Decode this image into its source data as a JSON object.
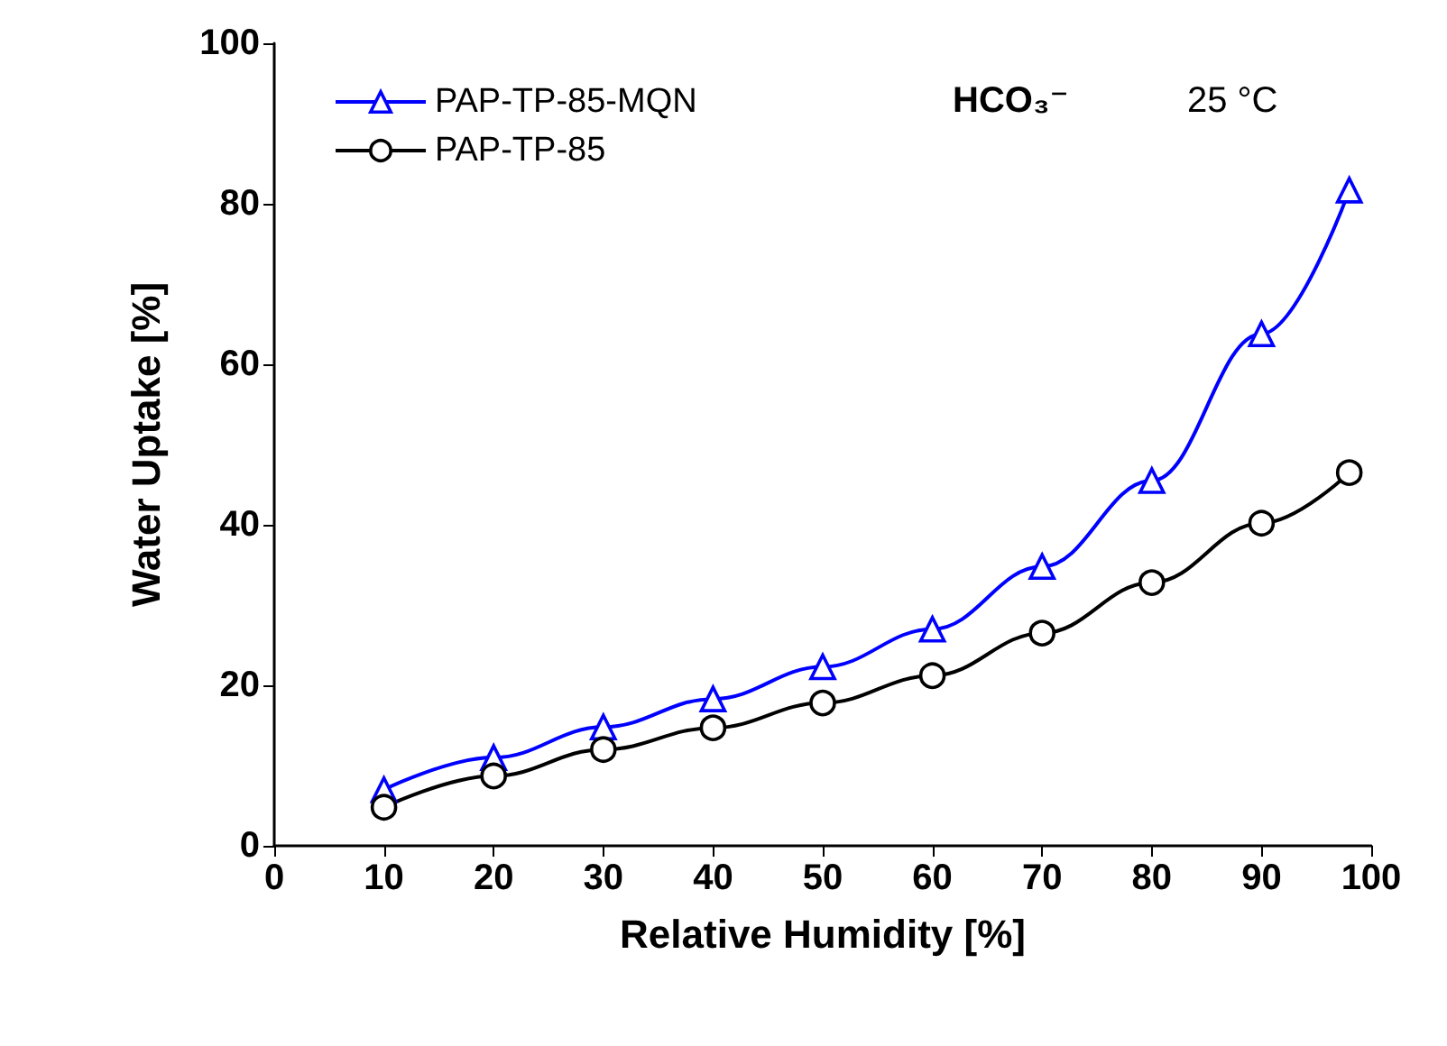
{
  "chart_data": {
    "type": "line",
    "xlabel": "Relative Humidity [%]",
    "ylabel": "Water Uptake [%]",
    "x": [
      10,
      20,
      30,
      40,
      50,
      60,
      70,
      80,
      90,
      98
    ],
    "series": [
      {
        "name": "PAP-TP-85-MQN",
        "color": "#0000ff",
        "marker": "triangle",
        "values": [
          7,
          11,
          14.8,
          18.3,
          22.3,
          27,
          34.8,
          45.5,
          63.8,
          81.7
        ]
      },
      {
        "name": "PAP-TP-85",
        "color": "#000000",
        "marker": "circle",
        "values": [
          4.8,
          8.7,
          12,
          14.7,
          17.8,
          21.2,
          26.5,
          32.8,
          40.2,
          46.5
        ]
      }
    ],
    "xlim": [
      0,
      100
    ],
    "xticks": [
      0,
      10,
      20,
      30,
      40,
      50,
      60,
      70,
      80,
      90,
      100
    ],
    "ylim": [
      0,
      100
    ],
    "yticks": [
      0,
      20,
      40,
      60,
      80,
      100
    ],
    "grid": false,
    "legend": "top left",
    "annotations": [
      "HCO₃⁻",
      "25 °C"
    ]
  }
}
